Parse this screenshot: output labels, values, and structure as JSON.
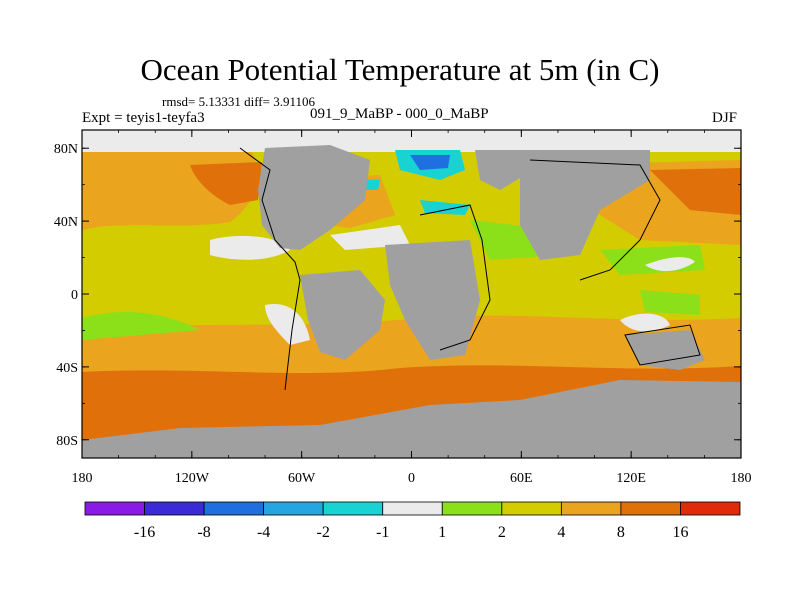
{
  "chart_data": {
    "type": "heatmap",
    "title": "Ocean Potential Temperature at 5m (in C)",
    "stats_line": "rmsd= 5.13331 diff= 3.91106",
    "left_label": "Expt = teyis1-teyfa3",
    "center_label": "091_9_MaBP - 000_0_MaBP",
    "right_label": "DJF",
    "x_ticks": [
      "180",
      "120W",
      "60W",
      "0",
      "60E",
      "120E",
      "180"
    ],
    "x_tick_values": [
      -180,
      -120,
      -60,
      0,
      60,
      120,
      180
    ],
    "y_ticks": [
      "80N",
      "40N",
      "0",
      "40S",
      "80S"
    ],
    "y_tick_values": [
      80,
      40,
      0,
      -40,
      -80
    ],
    "xlim": [
      -180,
      180
    ],
    "ylim": [
      -90,
      90
    ],
    "land_color": "#a0a0a0",
    "colorbar": {
      "labels": [
        "-16",
        "-8",
        "-4",
        "-2",
        "-1",
        "1",
        "2",
        "4",
        "8",
        "16"
      ],
      "bins": [
        {
          "range": "< -16",
          "color": "#8a1ae6"
        },
        {
          "range": "-16 to -8",
          "color": "#3a2bd6"
        },
        {
          "range": "-8 to -4",
          "color": "#1f6fe0"
        },
        {
          "range": "-4 to -2",
          "color": "#25a6e3"
        },
        {
          "range": "-2 to -1",
          "color": "#19d2d2"
        },
        {
          "range": "-1 to 1",
          "color": "#ebebeb"
        },
        {
          "range": "1 to 2",
          "color": "#8ce01a"
        },
        {
          "range": "2 to 4",
          "color": "#d2cc00"
        },
        {
          "range": "4 to 8",
          "color": "#eba41e"
        },
        {
          "range": "8 to 16",
          "color": "#e0700a"
        },
        {
          "range": "> 16",
          "color": "#e02a0a"
        }
      ]
    }
  }
}
